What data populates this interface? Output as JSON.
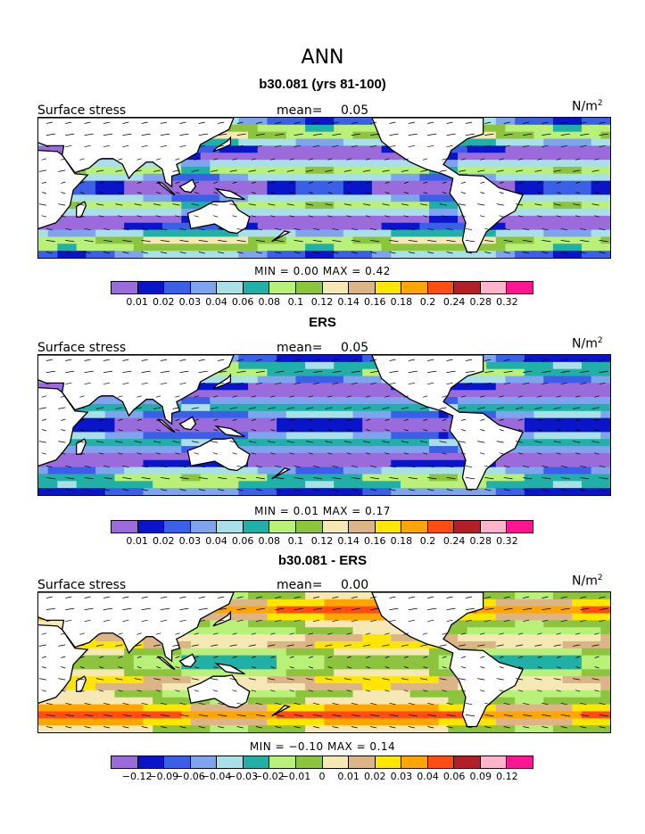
{
  "title": "ANN",
  "panels": [
    {
      "title": "b30.081 (yrs 81-100)",
      "field_label": "Surface stress",
      "mean_label": "mean=",
      "mean_value": "0.05",
      "units_base": "N/m",
      "units_exp": "2",
      "minmax": "MIN =    0.00  MAX =    0.42",
      "colors": [
        "#9b6bdb",
        "#0a14c8",
        "#3b5fe6",
        "#7ea4ee",
        "#a9dfe6",
        "#20b0a8",
        "#b8f07a",
        "#8cc43e",
        "#f5e8b4",
        "#dcb488",
        "#ffe600",
        "#ffa500",
        "#ff4d14",
        "#b41e28",
        "#ffb4cc",
        "#ff1493"
      ],
      "ticks": [
        "0.01",
        "0.02",
        "0.03",
        "0.04",
        "0.06",
        "0.08",
        "0.1",
        "0.12",
        "0.14",
        "0.16",
        "0.18",
        "0.2",
        "0.24",
        "0.28",
        "0.32"
      ],
      "variant": "model"
    },
    {
      "title": "ERS",
      "field_label": "Surface stress",
      "mean_label": "mean=",
      "mean_value": "0.05",
      "units_base": "N/m",
      "units_exp": "2",
      "minmax": "MIN =    0.01  MAX =    0.17",
      "colors": [
        "#9b6bdb",
        "#0a14c8",
        "#3b5fe6",
        "#7ea4ee",
        "#a9dfe6",
        "#20b0a8",
        "#b8f07a",
        "#8cc43e",
        "#f5e8b4",
        "#dcb488",
        "#ffe600",
        "#ffa500",
        "#ff4d14",
        "#b41e28",
        "#ffb4cc",
        "#ff1493"
      ],
      "ticks": [
        "0.01",
        "0.02",
        "0.03",
        "0.04",
        "0.06",
        "0.08",
        "0.1",
        "0.12",
        "0.14",
        "0.16",
        "0.18",
        "0.2",
        "0.24",
        "0.28",
        "0.32"
      ],
      "variant": "obs"
    },
    {
      "title": "b30.081 - ERS",
      "field_label": "Surface stress",
      "mean_label": "mean=",
      "mean_value": "0.00",
      "units_base": "N/m",
      "units_exp": "2",
      "minmax": "MIN =   −0.10  MAX =    0.14",
      "colors": [
        "#9b6bdb",
        "#0a14c8",
        "#3b5fe6",
        "#7ea4ee",
        "#a9dfe6",
        "#20b0a8",
        "#b8f07a",
        "#8cc43e",
        "#f5e8b4",
        "#dcb488",
        "#ffe600",
        "#ffa500",
        "#ff4d14",
        "#b41e28",
        "#ffb4cc",
        "#ff1493"
      ],
      "ticks": [
        "−0.12",
        "−0.09",
        "−0.06",
        "−0.04",
        "−0.03",
        "−0.02",
        "−0.01",
        "0",
        "0.01",
        "0.02",
        "0.03",
        "0.04",
        "0.06",
        "0.09",
        "0.12"
      ],
      "variant": "diff"
    }
  ],
  "land_color": "#ffffff",
  "coast_color": "#000000"
}
